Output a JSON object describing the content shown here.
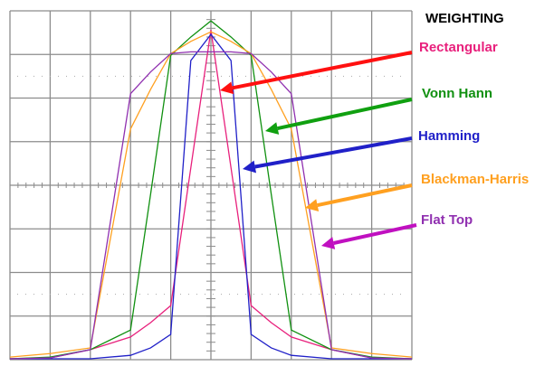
{
  "chart_data": {
    "type": "line",
    "title": "WEIGHTING",
    "xlabel": "",
    "ylabel": "",
    "xlim": [
      -5,
      5
    ],
    "ylim": [
      0,
      8
    ],
    "grid": true,
    "x": [
      -5,
      -4,
      -3,
      -2,
      -1.5,
      -1,
      -0.5,
      0,
      0.5,
      1,
      1.5,
      2,
      3,
      4,
      5
    ],
    "series": [
      {
        "name": "Rectangular",
        "color": "#e8207c",
        "values": [
          0.02,
          0.04,
          0.23,
          0.52,
          0.85,
          1.24,
          4.4,
          7.56,
          4.4,
          1.24,
          0.85,
          0.52,
          0.23,
          0.04,
          0.02
        ]
      },
      {
        "name": "Vonn Hann",
        "color": "#109010",
        "values": [
          0.02,
          0.06,
          0.23,
          0.68,
          3.8,
          6.98,
          7.4,
          7.77,
          7.4,
          6.98,
          3.8,
          0.68,
          0.23,
          0.06,
          0.02
        ]
      },
      {
        "name": "Hamming",
        "color": "#2020c8",
        "values": [
          0.02,
          0.02,
          0.02,
          0.1,
          0.27,
          0.58,
          6.86,
          7.46,
          6.86,
          0.58,
          0.27,
          0.1,
          0.02,
          0.02,
          0.02
        ]
      },
      {
        "name": "Blackman-Harris",
        "color": "#ffa020",
        "values": [
          0.06,
          0.14,
          0.27,
          5.29,
          6.2,
          7.02,
          7.3,
          7.52,
          7.3,
          7.02,
          6.2,
          5.29,
          0.27,
          0.14,
          0.06
        ]
      },
      {
        "name": "Flat Top",
        "color": "#9030b0",
        "values": [
          0.02,
          0.04,
          0.23,
          6.1,
          6.6,
          7.02,
          7.06,
          7.06,
          7.06,
          7.02,
          6.6,
          6.1,
          0.23,
          0.04,
          0.02
        ]
      }
    ],
    "legend": "right",
    "arrow_colors": [
      "#ff1010",
      "#10a010",
      "#2020c8",
      "#ffa020",
      "#c010c0"
    ]
  }
}
